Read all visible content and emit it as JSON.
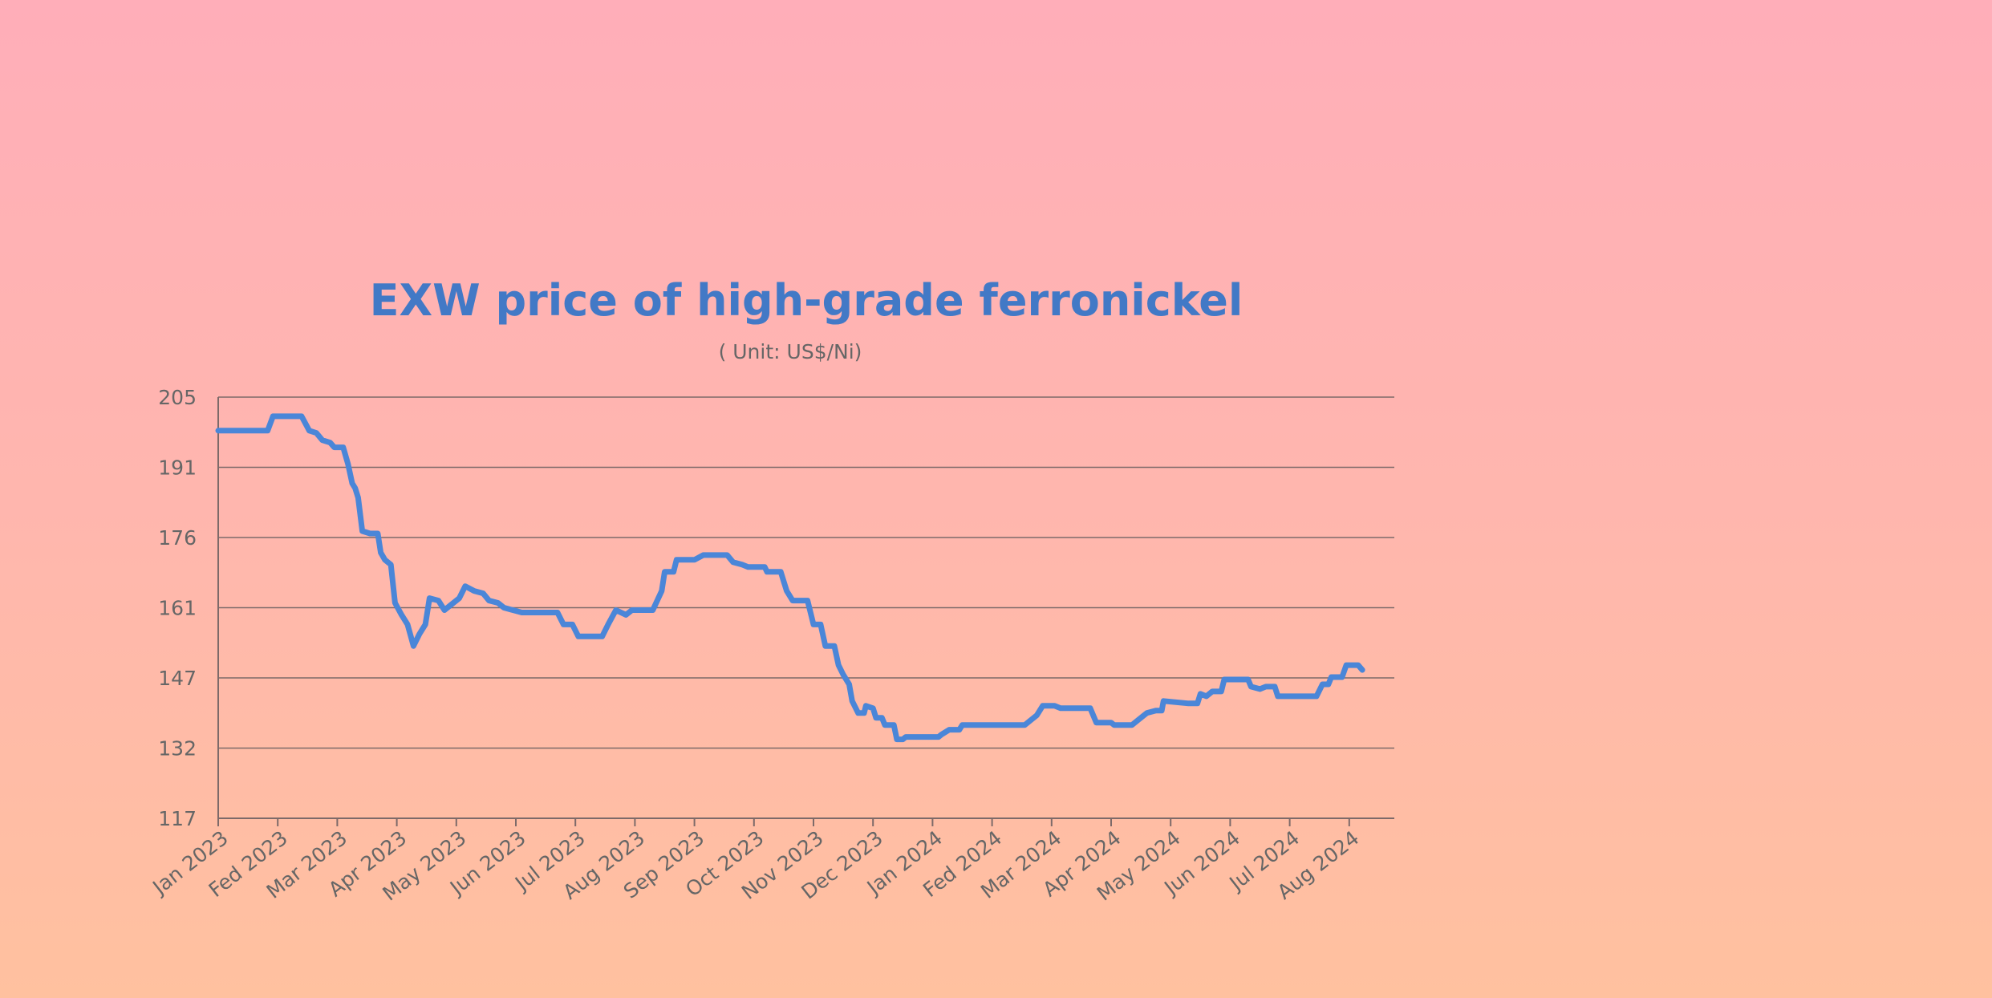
{
  "chart_data": {
    "type": "line",
    "title": "EXW price of high-grade ferronickel",
    "subtitle": "( Unit: US$/Ni)",
    "xlabel": "",
    "ylabel": "",
    "ylim": [
      117,
      205
    ],
    "y_ticks": [
      "205",
      "191",
      "176",
      "161",
      "147",
      "132",
      "117"
    ],
    "x_ticks": [
      "Jan 2023",
      "Fed 2023",
      "Mar 2023",
      "Apr 2023",
      "May 2023",
      "Jun 2023",
      "Jul 2023",
      "Aug 2023",
      "Sep 2023",
      "Oct 2023",
      "Nov 2023",
      "Dec 2023",
      "Jan 2024",
      "Fed 2024",
      "Mar 2024",
      "Apr 2024",
      "May 2024",
      "Jun 2024",
      "Jul 2024",
      "Aug 2024"
    ],
    "grid": true,
    "legend": "none",
    "series": [
      {
        "color": "#4a86d8",
        "points": [
          [
            0.0,
            198
          ],
          [
            0.83,
            198
          ],
          [
            0.92,
            201
          ],
          [
            1.4,
            201
          ],
          [
            1.53,
            198
          ],
          [
            1.65,
            197.5
          ],
          [
            1.75,
            196
          ],
          [
            1.88,
            195.5
          ],
          [
            1.95,
            194.5
          ],
          [
            2.1,
            194.5
          ],
          [
            2.18,
            191
          ],
          [
            2.25,
            187
          ],
          [
            2.3,
            186
          ],
          [
            2.35,
            184
          ],
          [
            2.42,
            177
          ],
          [
            2.55,
            176.5
          ],
          [
            2.68,
            176.5
          ],
          [
            2.73,
            172.5
          ],
          [
            2.8,
            171
          ],
          [
            2.9,
            170
          ],
          [
            2.97,
            162
          ],
          [
            3.08,
            159.5
          ],
          [
            3.18,
            157.5
          ],
          [
            3.28,
            153
          ],
          [
            3.38,
            155.5
          ],
          [
            3.48,
            157.5
          ],
          [
            3.55,
            163
          ],
          [
            3.7,
            162.5
          ],
          [
            3.8,
            160.5
          ],
          [
            3.9,
            161.5
          ],
          [
            4.05,
            163
          ],
          [
            4.15,
            165.5
          ],
          [
            4.3,
            164.5
          ],
          [
            4.45,
            164
          ],
          [
            4.55,
            162.5
          ],
          [
            4.7,
            162
          ],
          [
            4.8,
            161
          ],
          [
            4.95,
            160.5
          ],
          [
            5.1,
            160
          ],
          [
            5.35,
            160
          ],
          [
            5.7,
            160
          ],
          [
            5.8,
            157.5
          ],
          [
            5.95,
            157.5
          ],
          [
            6.05,
            155
          ],
          [
            6.45,
            155
          ],
          [
            6.55,
            157.5
          ],
          [
            6.68,
            160.5
          ],
          [
            6.85,
            159.5
          ],
          [
            6.95,
            160.5
          ],
          [
            7.3,
            160.5
          ],
          [
            7.45,
            164.5
          ],
          [
            7.5,
            168.5
          ],
          [
            7.65,
            168.5
          ],
          [
            7.7,
            171
          ],
          [
            8.0,
            171
          ],
          [
            8.15,
            172
          ],
          [
            8.55,
            172
          ],
          [
            8.65,
            170.5
          ],
          [
            8.8,
            170
          ],
          [
            8.9,
            169.5
          ],
          [
            9.18,
            169.5
          ],
          [
            9.22,
            168.5
          ],
          [
            9.45,
            168.5
          ],
          [
            9.55,
            164.5
          ],
          [
            9.65,
            162.5
          ],
          [
            9.9,
            162.5
          ],
          [
            10.0,
            157.5
          ],
          [
            10.12,
            157.5
          ],
          [
            10.2,
            153
          ],
          [
            10.35,
            153
          ],
          [
            10.42,
            149
          ],
          [
            10.5,
            147
          ],
          [
            10.6,
            145
          ],
          [
            10.65,
            141.5
          ],
          [
            10.75,
            139
          ],
          [
            10.85,
            139
          ],
          [
            10.88,
            140.5
          ],
          [
            11.0,
            140
          ],
          [
            11.05,
            138
          ],
          [
            11.15,
            138
          ],
          [
            11.2,
            136.5
          ],
          [
            11.35,
            136.5
          ],
          [
            11.4,
            133.5
          ],
          [
            11.5,
            133.5
          ],
          [
            11.55,
            134
          ],
          [
            12.1,
            134
          ],
          [
            12.15,
            134.5
          ],
          [
            12.28,
            135.5
          ],
          [
            12.45,
            135.5
          ],
          [
            12.5,
            136.5
          ],
          [
            13.55,
            136.5
          ],
          [
            13.65,
            137.5
          ],
          [
            13.75,
            138.5
          ],
          [
            13.85,
            140.5
          ],
          [
            14.05,
            140.5
          ],
          [
            14.15,
            140
          ],
          [
            14.65,
            140
          ],
          [
            14.75,
            137
          ],
          [
            15.0,
            137
          ],
          [
            15.05,
            136.5
          ],
          [
            15.35,
            136.5
          ],
          [
            15.45,
            137.5
          ],
          [
            15.6,
            139
          ],
          [
            15.75,
            139.5
          ],
          [
            15.85,
            139.5
          ],
          [
            15.88,
            141.5
          ],
          [
            16.3,
            141
          ],
          [
            16.45,
            141
          ],
          [
            16.5,
            143
          ],
          [
            16.6,
            142.5
          ],
          [
            16.7,
            143.5
          ],
          [
            16.85,
            143.5
          ],
          [
            16.9,
            146
          ],
          [
            17.3,
            146
          ],
          [
            17.35,
            144.5
          ],
          [
            17.5,
            144
          ],
          [
            17.6,
            144.5
          ],
          [
            17.75,
            144.5
          ],
          [
            17.8,
            142.5
          ],
          [
            18.3,
            142.5
          ],
          [
            18.45,
            142.5
          ],
          [
            18.55,
            145
          ],
          [
            18.65,
            145
          ],
          [
            18.7,
            146.5
          ],
          [
            18.88,
            146.5
          ],
          [
            18.95,
            149
          ],
          [
            19.15,
            149
          ],
          [
            19.22,
            148
          ]
        ]
      }
    ]
  }
}
